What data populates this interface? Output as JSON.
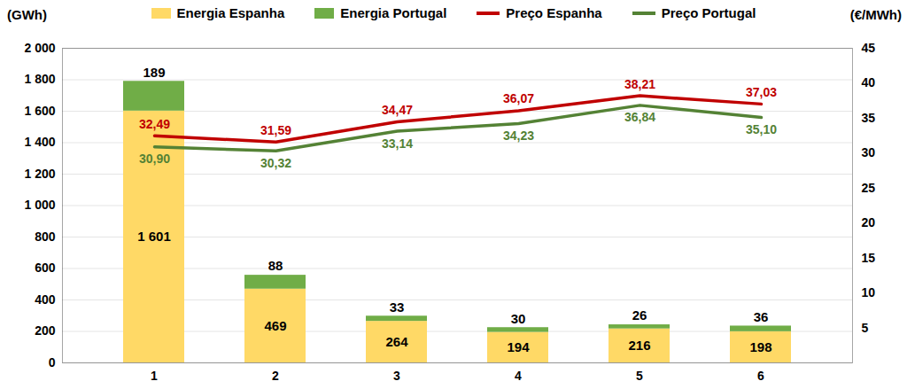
{
  "chart_data": {
    "type": "bar",
    "categories": [
      1,
      2,
      3,
      4,
      5,
      6
    ],
    "y_label": "(GWh)",
    "y2_label": "(€/MWh)",
    "ylim": [
      0,
      2000
    ],
    "yticks": [
      0,
      200,
      400,
      600,
      800,
      {
        "value": 1000,
        "label": "1 000"
      },
      {
        "value": 1200,
        "label": "1 200"
      },
      {
        "value": 1400,
        "label": "1 400"
      },
      {
        "value": 1600,
        "label": "1 600"
      },
      {
        "value": 1800,
        "label": "1 800"
      },
      {
        "value": 2000,
        "label": "2 000"
      }
    ],
    "y2lim": [
      0,
      45
    ],
    "y2ticks": [
      5,
      10,
      15,
      20,
      25,
      30,
      35,
      40,
      45
    ],
    "stacked": true,
    "data_labels": true,
    "legend": "top",
    "grid": true,
    "series": [
      {
        "name": "Energia Espanha",
        "type": "bar",
        "color": "#FFD966",
        "values": [
          1601,
          469,
          264,
          194,
          216,
          198
        ],
        "value_labels": [
          "1 601",
          "469",
          "264",
          "194",
          "216",
          "198"
        ]
      },
      {
        "name": "Energia Portugal",
        "type": "bar",
        "color": "#70AD47",
        "values": [
          189,
          88,
          33,
          30,
          26,
          36
        ]
      },
      {
        "name": "Preço Espanha",
        "type": "line",
        "axis": "y2",
        "color": "#C00000",
        "values": [
          32.49,
          31.59,
          34.47,
          36.07,
          38.21,
          37.03
        ],
        "value_labels": [
          "32,49",
          "31,59",
          "34,47",
          "36,07",
          "38,21",
          "37,03"
        ]
      },
      {
        "name": "Preço Portugal",
        "type": "line",
        "axis": "y2",
        "color": "#548235",
        "values": [
          30.9,
          30.32,
          33.14,
          34.23,
          36.84,
          35.1
        ],
        "value_labels": [
          "30,90",
          "30,32",
          "33,14",
          "34,23",
          "36,84",
          "35,10"
        ]
      }
    ]
  }
}
